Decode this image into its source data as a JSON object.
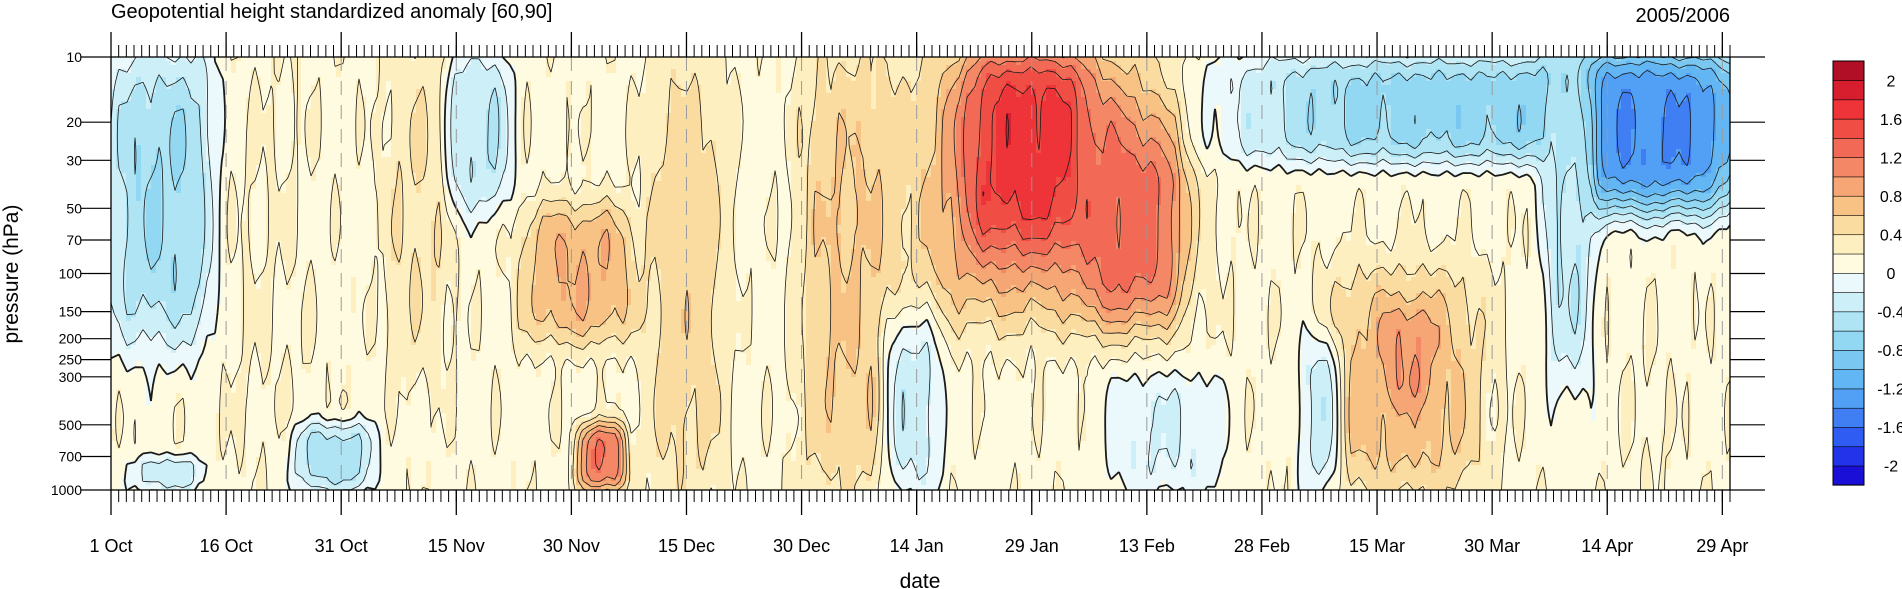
{
  "chart_data": {
    "type": "heatmap",
    "title": "Geopotential height standardized anomaly [60,90]",
    "subtitle_right": "2005/2006",
    "xlabel": "date",
    "ylabel": "pressure (hPa)",
    "y_scale": "log",
    "y_reversed": true,
    "ylim": [
      1000,
      10
    ],
    "x_range_days": [
      0,
      211
    ],
    "x_ticks": [
      {
        "day": 0,
        "label": "1 Oct"
      },
      {
        "day": 15,
        "label": "16 Oct"
      },
      {
        "day": 30,
        "label": "31 Oct"
      },
      {
        "day": 45,
        "label": "15 Nov"
      },
      {
        "day": 60,
        "label": "30 Nov"
      },
      {
        "day": 75,
        "label": "15 Dec"
      },
      {
        "day": 90,
        "label": "30 Dec"
      },
      {
        "day": 105,
        "label": "14 Jan"
      },
      {
        "day": 120,
        "label": "29 Jan"
      },
      {
        "day": 135,
        "label": "13 Feb"
      },
      {
        "day": 150,
        "label": "28 Feb"
      },
      {
        "day": 165,
        "label": "15 Mar"
      },
      {
        "day": 180,
        "label": "30 Mar"
      },
      {
        "day": 195,
        "label": "14 Apr"
      },
      {
        "day": 210,
        "label": "29 Apr"
      }
    ],
    "y_ticks": [
      {
        "value": 10,
        "label": "10"
      },
      {
        "value": 20,
        "label": "20"
      },
      {
        "value": 30,
        "label": "30"
      },
      {
        "value": 50,
        "label": "50"
      },
      {
        "value": 70,
        "label": "70"
      },
      {
        "value": 100,
        "label": "100"
      },
      {
        "value": 150,
        "label": "150"
      },
      {
        "value": 200,
        "label": "200"
      },
      {
        "value": 250,
        "label": "250"
      },
      {
        "value": 300,
        "label": "300"
      },
      {
        "value": 500,
        "label": "500"
      },
      {
        "value": 700,
        "label": "700"
      },
      {
        "value": 1000,
        "label": "1000"
      }
    ],
    "colorbar": {
      "levels": [
        -2.2,
        -2,
        -1.8,
        -1.6,
        -1.4,
        -1.2,
        -1,
        -0.8,
        -0.6,
        -0.4,
        -0.2,
        0,
        0.2,
        0.4,
        0.6,
        0.8,
        1,
        1.2,
        1.4,
        1.6,
        1.8,
        2,
        2.2
      ],
      "colors": [
        "#1a0fd6",
        "#2233ea",
        "#2f5cf2",
        "#3f7ff3",
        "#52a0f5",
        "#62b6f4",
        "#7ac8f2",
        "#93d8f3",
        "#aee4f4",
        "#cdeff8",
        "#ecf9fc",
        "#fffbe0",
        "#fdefbf",
        "#fbdca0",
        "#f9c285",
        "#f6a575",
        "#f48866",
        "#f26a55",
        "#f04d45",
        "#ee3439",
        "#d71e2e",
        "#b00f26"
      ],
      "labels": [
        {
          "value": 2,
          "label": "2"
        },
        {
          "value": 1.6,
          "label": "1.6"
        },
        {
          "value": 1.2,
          "label": "1.2"
        },
        {
          "value": 0.8,
          "label": "0.8"
        },
        {
          "value": 0.4,
          "label": "0.4"
        },
        {
          "value": 0,
          "label": "0"
        },
        {
          "value": -0.4,
          "label": "-0.4"
        },
        {
          "value": -0.8,
          "label": "-0.8"
        },
        {
          "value": -1.2,
          "label": "-1.2"
        },
        {
          "value": -1.6,
          "label": "-1.6"
        },
        {
          "value": -2,
          "label": "-2"
        }
      ]
    },
    "anomaly_features": [
      {
        "day_range": [
          0,
          14
        ],
        "p_range": [
          10,
          200
        ],
        "value": -0.6
      },
      {
        "day_range": [
          3,
          12
        ],
        "p_range": [
          700,
          1000
        ],
        "value": -0.3
      },
      {
        "day_range": [
          14,
          26
        ],
        "p_range": [
          10,
          1000
        ],
        "value": 0.2
      },
      {
        "day_range": [
          24,
          34
        ],
        "p_range": [
          500,
          1000
        ],
        "value": -0.5
      },
      {
        "day_range": [
          36,
          44
        ],
        "p_range": [
          10,
          250
        ],
        "value": 0.4
      },
      {
        "day_range": [
          44,
          52
        ],
        "p_range": [
          10,
          50
        ],
        "value": -0.4
      },
      {
        "day_range": [
          54,
          68
        ],
        "p_range": [
          50,
          200
        ],
        "value": 0.8
      },
      {
        "day_range": [
          61,
          67
        ],
        "p_range": [
          500,
          1000
        ],
        "value": 1.2
      },
      {
        "day_range": [
          70,
          80
        ],
        "p_range": [
          10,
          1000
        ],
        "value": 0.5
      },
      {
        "day_range": [
          90,
          102
        ],
        "p_range": [
          10,
          1000
        ],
        "value": 0.6
      },
      {
        "day_range": [
          101,
          108
        ],
        "p_range": [
          150,
          1000
        ],
        "value": -0.3
      },
      {
        "day_range": [
          106,
          138
        ],
        "p_range": [
          10,
          150
        ],
        "value": 1.0
      },
      {
        "day_range": [
          112,
          127
        ],
        "p_range": [
          10,
          70
        ],
        "value": 1.7
      },
      {
        "day_range": [
          127,
          139
        ],
        "p_range": [
          20,
          150
        ],
        "value": 1.3
      },
      {
        "day_range": [
          130,
          145
        ],
        "p_range": [
          300,
          1000
        ],
        "value": -0.2
      },
      {
        "day_range": [
          148,
          212
        ],
        "p_range": [
          10,
          30
        ],
        "value": -0.7
      },
      {
        "day_range": [
          190,
          212
        ],
        "p_range": [
          10,
          50
        ],
        "value": -1.4
      },
      {
        "day_range": [
          159,
          178
        ],
        "p_range": [
          100,
          1000
        ],
        "value": 0.7
      },
      {
        "day_range": [
          166,
          172
        ],
        "p_range": [
          150,
          400
        ],
        "value": 1.0
      },
      {
        "day_range": [
          155,
          160
        ],
        "p_range": [
          200,
          1000
        ],
        "value": -0.3
      },
      {
        "day_range": [
          187,
          193
        ],
        "p_range": [
          10,
          300
        ],
        "value": -0.4
      },
      {
        "day_range": [
          197,
          203
        ],
        "p_range": [
          200,
          1000
        ],
        "value": 0.2
      }
    ]
  }
}
